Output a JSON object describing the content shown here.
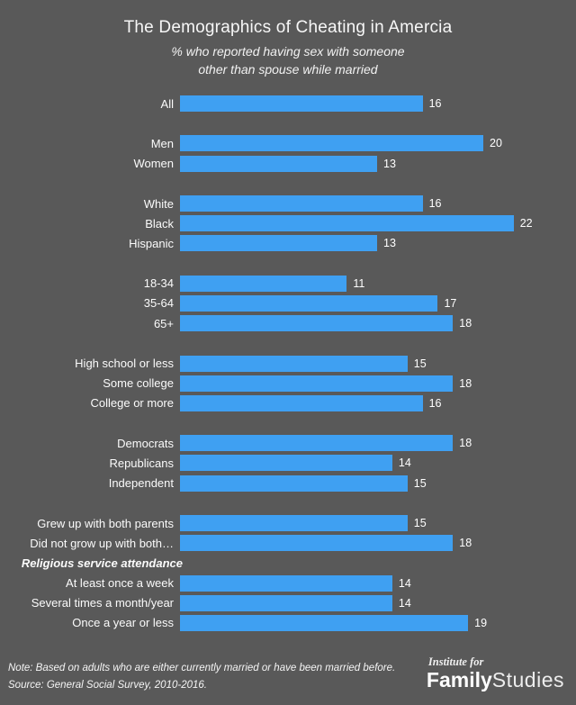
{
  "colors": {
    "background": "#595959",
    "bar": "#3fa0f2",
    "text": "#ffffff"
  },
  "chart_data": {
    "type": "bar",
    "orientation": "horizontal",
    "title": "The Demographics of Cheating in Amercia",
    "subtitle": [
      "% who reported having sex with someone",
      "other than spouse while married"
    ],
    "xlim": [
      0,
      22
    ],
    "grid": false,
    "legend": false,
    "value_labels": true,
    "groups": [
      {
        "categories": [
          "All"
        ],
        "values": [
          16
        ]
      },
      {
        "categories": [
          "Men",
          "Women"
        ],
        "values": [
          20,
          13
        ]
      },
      {
        "categories": [
          "White",
          "Black",
          "Hispanic"
        ],
        "values": [
          16,
          22,
          13
        ]
      },
      {
        "categories": [
          "18-34",
          "35-64",
          "65+"
        ],
        "values": [
          11,
          17,
          18
        ]
      },
      {
        "categories": [
          "High school or less",
          "Some college",
          "College or more"
        ],
        "values": [
          15,
          18,
          16
        ]
      },
      {
        "categories": [
          "Democrats",
          "Republicans",
          "Independent"
        ],
        "values": [
          18,
          14,
          15
        ]
      },
      {
        "categories": [
          "Grew up with both parents",
          "Did not grow up with both…"
        ],
        "values": [
          15,
          18
        ]
      },
      {
        "header": "Religious service attendance",
        "categories": [
          "At least once a week",
          "Several times a month/year",
          "Once a year or less"
        ],
        "values": [
          14,
          14,
          19
        ]
      }
    ]
  },
  "footer": {
    "note": "Note: Based on adults who are either currently married or have been married before.",
    "source": "Source: General Social Survey, 2010-2016."
  },
  "logo": {
    "line1": "Institute for",
    "family": "Family",
    "studies": "Studies"
  }
}
